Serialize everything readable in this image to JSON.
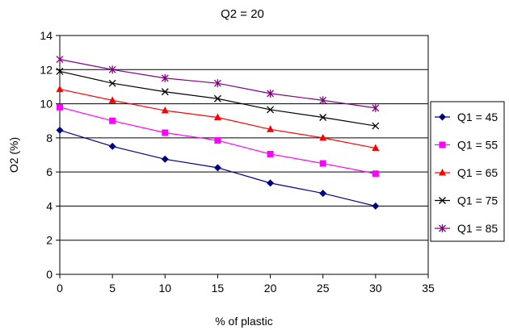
{
  "chart_data": {
    "type": "line",
    "title": "Q2 = 20",
    "xlabel": "% of plastic",
    "ylabel": "O2 (%)",
    "xlim": [
      0,
      35
    ],
    "ylim": [
      0,
      14
    ],
    "x_ticks": [
      "0",
      "5",
      "10",
      "15",
      "20",
      "25",
      "30",
      "35"
    ],
    "y_ticks": [
      "0",
      "2",
      "4",
      "6",
      "8",
      "10",
      "12",
      "14"
    ],
    "grid": "horizontal",
    "legend_position": "right",
    "x": [
      0,
      5,
      10,
      15,
      20,
      25,
      30
    ],
    "series": [
      {
        "name": "Q1 = 45",
        "color": "#000080",
        "marker": "diamond",
        "values": [
          8.45,
          7.5,
          6.75,
          6.25,
          5.35,
          4.75,
          4.0
        ]
      },
      {
        "name": "Q1 = 55",
        "color": "#ff00ff",
        "marker": "square",
        "values": [
          9.8,
          9.0,
          8.3,
          7.85,
          7.05,
          6.5,
          5.9
        ]
      },
      {
        "name": "Q1 = 65",
        "color": "#ff0000",
        "marker": "triangle",
        "values": [
          10.85,
          10.2,
          9.6,
          9.2,
          8.5,
          8.0,
          7.4
        ]
      },
      {
        "name": "Q1 = 75",
        "color": "#000000",
        "marker": "x",
        "values": [
          11.9,
          11.2,
          10.7,
          10.3,
          9.65,
          9.2,
          8.7
        ]
      },
      {
        "name": "Q1 = 85",
        "color": "#800080",
        "marker": "star",
        "values": [
          12.6,
          12.0,
          11.5,
          11.2,
          10.6,
          10.2,
          9.75
        ]
      }
    ]
  }
}
